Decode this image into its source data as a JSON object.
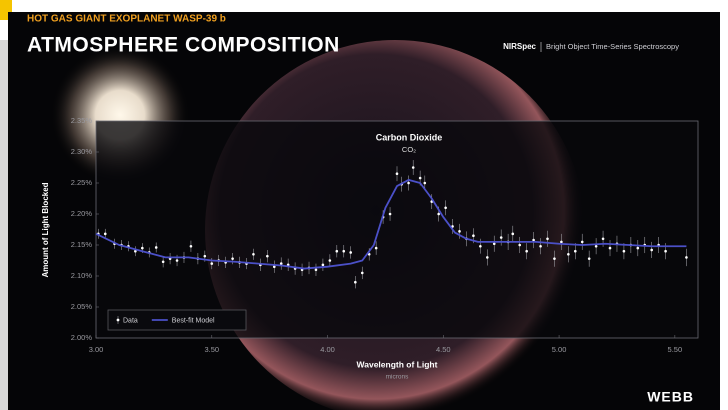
{
  "header": {
    "kicker": "HOT GAS GIANT EXOPLANET WASP-39 b",
    "title": "ATMOSPHERE COMPOSITION",
    "instrument": "NIRSpec",
    "mode": "Bright Object Time-Series Spectroscopy"
  },
  "logo": "WEBB",
  "chart_data": {
    "type": "scatter",
    "annotation": "Carbon Dioxide",
    "annotation_formula": "CO₂",
    "x_label": "Wavelength of Light",
    "x_unit": "microns",
    "y_label": "Amount of Light Blocked",
    "xlim": [
      3.0,
      5.6
    ],
    "ylim": [
      2.0,
      2.35
    ],
    "xticks": [
      {
        "value": 3,
        "label": "3.00"
      },
      {
        "value": 3.5,
        "label": "3.50"
      },
      {
        "value": 4,
        "label": "4.00"
      },
      {
        "value": 4.5,
        "label": "4.50"
      },
      {
        "value": 5,
        "label": "5.00"
      },
      {
        "value": 5.5,
        "label": "5.50"
      }
    ],
    "yticks": [
      {
        "value": 2,
        "label": "2.00%"
      },
      {
        "value": 2.05,
        "label": "2.05%"
      },
      {
        "value": 2.1,
        "label": "2.10%"
      },
      {
        "value": 2.15,
        "label": "2.15%"
      },
      {
        "value": 2.2,
        "label": "2.20%"
      },
      {
        "value": 2.25,
        "label": "2.25%"
      },
      {
        "value": 2.3,
        "label": "2.30%"
      },
      {
        "value": 2.35,
        "label": "2.35%"
      }
    ],
    "series": [
      {
        "name": "Data",
        "type": "scatter",
        "color": "#ffffff",
        "x": [
          3.01,
          3.04,
          3.08,
          3.11,
          3.14,
          3.17,
          3.2,
          3.23,
          3.26,
          3.29,
          3.32,
          3.35,
          3.38,
          3.41,
          3.44,
          3.47,
          3.5,
          3.53,
          3.56,
          3.59,
          3.62,
          3.65,
          3.68,
          3.71,
          3.74,
          3.77,
          3.8,
          3.83,
          3.86,
          3.89,
          3.92,
          3.95,
          3.98,
          4.01,
          4.04,
          4.07,
          4.1,
          4.12,
          4.15,
          4.18,
          4.21,
          4.24,
          4.27,
          4.3,
          4.32,
          4.35,
          4.37,
          4.4,
          4.42,
          4.45,
          4.48,
          4.51,
          4.54,
          4.57,
          4.6,
          4.63,
          4.66,
          4.69,
          4.72,
          4.75,
          4.78,
          4.8,
          4.83,
          4.86,
          4.89,
          4.92,
          4.95,
          4.98,
          5.01,
          5.04,
          5.07,
          5.1,
          5.13,
          5.16,
          5.19,
          5.22,
          5.25,
          5.28,
          5.31,
          5.34,
          5.37,
          5.4,
          5.43,
          5.46,
          5.55
        ],
        "values": [
          2.168,
          2.168,
          2.152,
          2.15,
          2.148,
          2.14,
          2.145,
          2.138,
          2.146,
          2.123,
          2.128,
          2.125,
          2.13,
          2.148,
          2.128,
          2.132,
          2.12,
          2.125,
          2.122,
          2.128,
          2.122,
          2.12,
          2.135,
          2.118,
          2.132,
          2.115,
          2.12,
          2.118,
          2.112,
          2.11,
          2.113,
          2.11,
          2.118,
          2.125,
          2.14,
          2.14,
          2.138,
          2.09,
          2.105,
          2.135,
          2.145,
          2.195,
          2.2,
          2.265,
          2.248,
          2.25,
          2.275,
          2.258,
          2.25,
          2.22,
          2.2,
          2.21,
          2.18,
          2.172,
          2.16,
          2.165,
          2.148,
          2.13,
          2.152,
          2.162,
          2.155,
          2.168,
          2.15,
          2.14,
          2.158,
          2.148,
          2.16,
          2.128,
          2.155,
          2.135,
          2.14,
          2.155,
          2.128,
          2.148,
          2.16,
          2.145,
          2.152,
          2.14,
          2.15,
          2.145,
          2.15,
          2.142,
          2.15,
          2.14,
          2.13
        ],
        "errors": [
          0.008,
          0.008,
          0.008,
          0.008,
          0.008,
          0.008,
          0.008,
          0.008,
          0.008,
          0.009,
          0.009,
          0.009,
          0.009,
          0.009,
          0.009,
          0.009,
          0.009,
          0.009,
          0.009,
          0.009,
          0.009,
          0.009,
          0.009,
          0.01,
          0.01,
          0.01,
          0.01,
          0.01,
          0.01,
          0.01,
          0.01,
          0.01,
          0.01,
          0.01,
          0.01,
          0.01,
          0.01,
          0.01,
          0.01,
          0.01,
          0.011,
          0.011,
          0.011,
          0.012,
          0.012,
          0.012,
          0.012,
          0.012,
          0.012,
          0.012,
          0.012,
          0.012,
          0.012,
          0.012,
          0.012,
          0.012,
          0.012,
          0.013,
          0.013,
          0.013,
          0.013,
          0.013,
          0.013,
          0.013,
          0.013,
          0.013,
          0.013,
          0.013,
          0.013,
          0.013,
          0.013,
          0.013,
          0.013,
          0.013,
          0.013,
          0.013,
          0.013,
          0.013,
          0.013,
          0.013,
          0.013,
          0.013,
          0.013,
          0.013,
          0.014
        ]
      },
      {
        "name": "Best-fit Model",
        "type": "line",
        "color": "#4b50c8",
        "x": [
          3.0,
          3.1,
          3.2,
          3.3,
          3.4,
          3.5,
          3.6,
          3.7,
          3.8,
          3.9,
          4.0,
          4.1,
          4.15,
          4.2,
          4.25,
          4.3,
          4.35,
          4.4,
          4.45,
          4.5,
          4.55,
          4.6,
          4.65,
          4.7,
          4.8,
          4.9,
          5.0,
          5.1,
          5.2,
          5.3,
          5.4,
          5.55
        ],
        "values": [
          2.168,
          2.15,
          2.14,
          2.13,
          2.13,
          2.125,
          2.123,
          2.12,
          2.117,
          2.112,
          2.115,
          2.12,
          2.125,
          2.15,
          2.21,
          2.245,
          2.255,
          2.25,
          2.225,
          2.195,
          2.17,
          2.16,
          2.155,
          2.155,
          2.155,
          2.155,
          2.152,
          2.15,
          2.152,
          2.15,
          2.148,
          2.148
        ]
      }
    ]
  }
}
